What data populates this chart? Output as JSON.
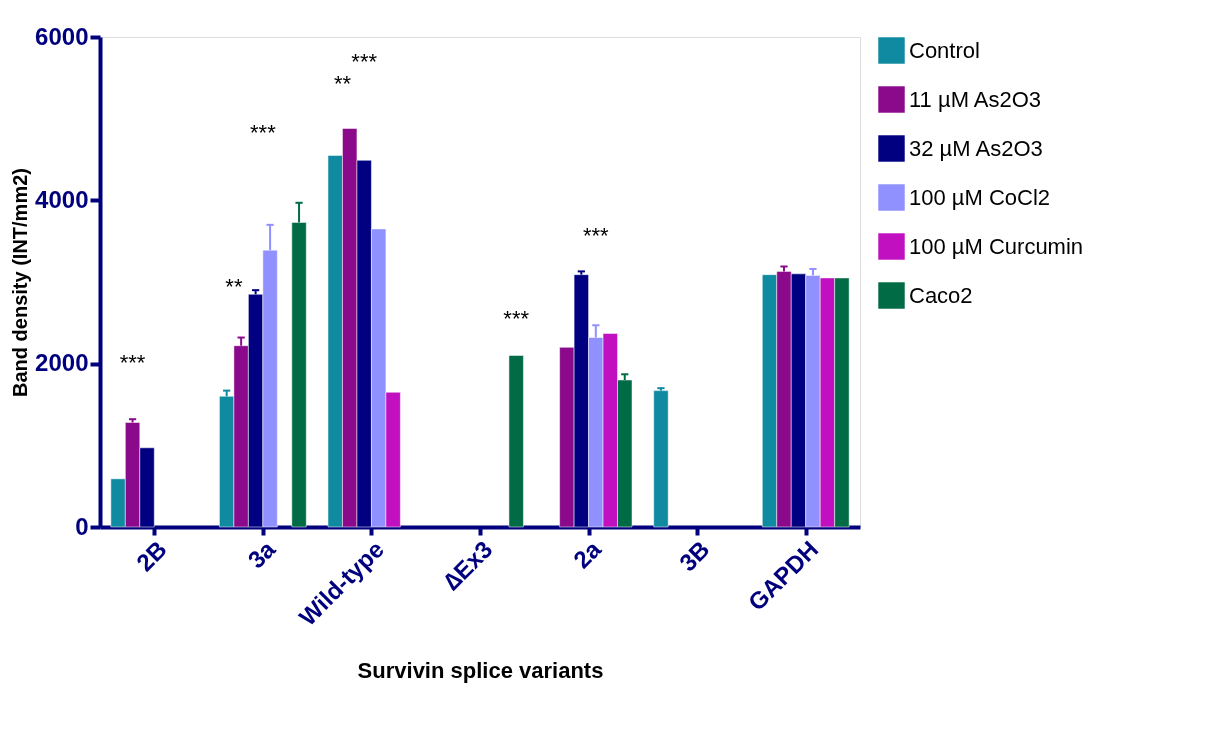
{
  "chart_data": {
    "type": "bar",
    "xlabel": "Survivin splice variants",
    "ylabel": "Band density (INT/mm2)",
    "categories": [
      "2B",
      "3a",
      "Wild-type",
      "∆Ex3",
      "2a",
      "3B",
      "GAPDH"
    ],
    "ylim": [
      0,
      6000
    ],
    "yticks": [
      0,
      2000,
      4000,
      6000
    ],
    "grid": false,
    "legend": "top right",
    "series": [
      {
        "name": "Control",
        "color": "#108aa0",
        "values": [
          590,
          1600,
          4550,
          null,
          null,
          1670,
          3090
        ],
        "errors": [
          null,
          70,
          null,
          null,
          null,
          30,
          null
        ]
      },
      {
        "name": "11 µM As2O3",
        "color": "#8b0a8b",
        "values": [
          1280,
          2220,
          4880,
          null,
          2200,
          null,
          3130
        ],
        "errors": [
          40,
          100,
          null,
          null,
          null,
          null,
          60
        ]
      },
      {
        "name": "32 µM As2O3",
        "color": "#000080",
        "values": [
          970,
          2850,
          4490,
          null,
          3090,
          null,
          3100
        ],
        "errors": [
          null,
          50,
          null,
          null,
          40,
          null,
          null
        ]
      },
      {
        "name": "100 µM CoCl2",
        "color": "#9090ff",
        "values": [
          null,
          3390,
          3650,
          null,
          2320,
          null,
          3080
        ],
        "errors": [
          null,
          310,
          null,
          null,
          150,
          null,
          80
        ]
      },
      {
        "name": "100 µM Curcumin",
        "color": "#c010c0",
        "values": [
          null,
          null,
          1650,
          null,
          2370,
          null,
          3050
        ],
        "errors": [
          null,
          null,
          null,
          null,
          null,
          null,
          null
        ]
      },
      {
        "name": "Caco2",
        "color": "#006b45",
        "values": [
          null,
          3730,
          null,
          2100,
          1800,
          null,
          3050
        ],
        "errors": [
          null,
          240,
          null,
          null,
          70,
          null,
          null
        ]
      }
    ],
    "annotations": [
      "***",
      "**",
      "***",
      "**",
      "***",
      "***",
      "***"
    ]
  }
}
